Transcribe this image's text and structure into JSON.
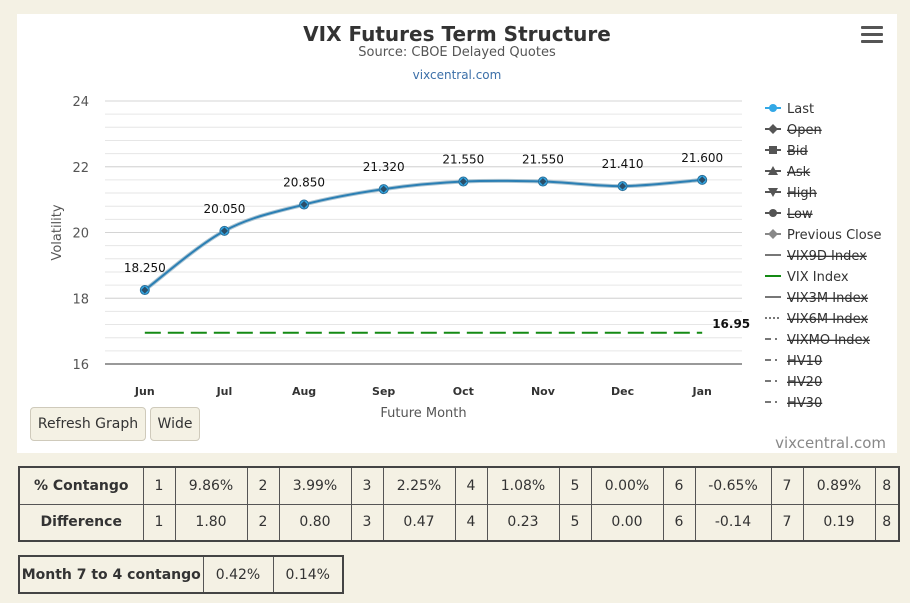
{
  "chart": {
    "title": "VIX Futures Term Structure",
    "subtitle": "Source: CBOE Delayed Quotes",
    "link": "vixcentral.com",
    "credit": "vixcentral.com",
    "menu_icon": "hamburger-menu-icon"
  },
  "buttons": {
    "refresh": "Refresh Graph",
    "wide": "Wide"
  },
  "chart_data": {
    "type": "line",
    "xlabel": "Future Month",
    "ylabel": "Volatility",
    "ylim": [
      16,
      24
    ],
    "yticks": [
      16,
      18,
      20,
      22,
      24
    ],
    "grid": true,
    "legend_position": "right",
    "categories": [
      "Jun",
      "Jul",
      "Aug",
      "Sep",
      "Oct",
      "Nov",
      "Dec",
      "Jan"
    ],
    "series": [
      {
        "name": "Last",
        "values": [
          18.25,
          20.05,
          20.85,
          21.32,
          21.55,
          21.55,
          21.41,
          21.6
        ],
        "labels": [
          "18.250",
          "20.050",
          "20.850",
          "21.320",
          "21.550",
          "21.550",
          "21.410",
          "21.600"
        ],
        "color": "#33a8e6"
      },
      {
        "name": "VIX Index",
        "value": 16.95,
        "label": "16.95",
        "color": "#148a14"
      }
    ],
    "legend": [
      {
        "name": "Last",
        "active": true,
        "symbol": "circle",
        "color": "#33a8e6"
      },
      {
        "name": "Open",
        "active": false,
        "symbol": "diamond",
        "color": "#555555"
      },
      {
        "name": "Bid",
        "active": false,
        "symbol": "square",
        "color": "#555555"
      },
      {
        "name": "Ask",
        "active": false,
        "symbol": "triangle",
        "color": "#555555"
      },
      {
        "name": "High",
        "active": false,
        "symbol": "triangle-down",
        "color": "#555555"
      },
      {
        "name": "Low",
        "active": false,
        "symbol": "circle",
        "color": "#555555"
      },
      {
        "name": "Previous Close",
        "active": true,
        "symbol": "diamond",
        "color": "#888888"
      },
      {
        "name": "VIX9D Index",
        "active": false,
        "symbol": "line",
        "color": "#777777"
      },
      {
        "name": "VIX Index",
        "active": true,
        "symbol": "line",
        "color": "#148a14"
      },
      {
        "name": "VIX3M Index",
        "active": false,
        "symbol": "line",
        "color": "#777777"
      },
      {
        "name": "VIX6M Index",
        "active": false,
        "symbol": "dotted",
        "color": "#777777"
      },
      {
        "name": "VIXMO Index",
        "active": false,
        "symbol": "dashdot",
        "color": "#777777"
      },
      {
        "name": "HV10",
        "active": false,
        "symbol": "dashdot",
        "color": "#777777"
      },
      {
        "name": "HV20",
        "active": false,
        "symbol": "dashdot",
        "color": "#777777"
      },
      {
        "name": "HV30",
        "active": false,
        "symbol": "dashdot",
        "color": "#777777"
      }
    ]
  },
  "contango_table": {
    "rows": [
      {
        "label": "% Contango",
        "cells": [
          "1",
          "9.86%",
          "2",
          "3.99%",
          "3",
          "2.25%",
          "4",
          "1.08%",
          "5",
          "0.00%",
          "6",
          "-0.65%",
          "7",
          "0.89%",
          "8"
        ]
      },
      {
        "label": "Difference",
        "cells": [
          "1",
          "1.80",
          "2",
          "0.80",
          "3",
          "0.47",
          "4",
          "0.23",
          "5",
          "0.00",
          "6",
          "-0.14",
          "7",
          "0.19",
          "8"
        ]
      }
    ]
  },
  "month_table": {
    "label": "Month 7 to 4 contango",
    "values": [
      "0.42%",
      "0.14%"
    ]
  }
}
